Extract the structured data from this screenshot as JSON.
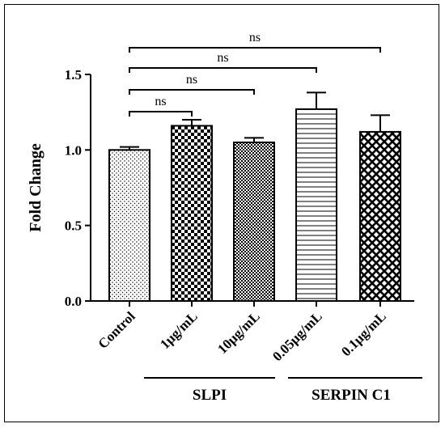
{
  "chart_data": {
    "type": "bar",
    "ylabel": "Fold Change",
    "ylim": [
      0.0,
      1.5
    ],
    "yticks": [
      "0.0",
      "0.5",
      "1.0",
      "1.5"
    ],
    "categories": [
      "Control",
      "1μg/mL",
      "10μg/mL",
      "0.05μg/mL",
      "0.1μg/mL"
    ],
    "values": [
      1.0,
      1.16,
      1.05,
      1.27,
      1.12
    ],
    "errors": [
      0.02,
      0.04,
      0.03,
      0.11,
      0.11
    ],
    "patterns": [
      "dots",
      "checker",
      "fine-checker",
      "horizontal-lines",
      "diagonal-crosshatch"
    ],
    "groups": [
      {
        "label": "SLPI",
        "categories": [
          "1μg/mL",
          "10μg/mL"
        ]
      },
      {
        "label": "SERPIN C1",
        "categories": [
          "0.05μg/mL",
          "0.1μg/mL"
        ]
      }
    ],
    "significance": [
      {
        "from": "Control",
        "to": "1μg/mL",
        "label": "ns"
      },
      {
        "from": "Control",
        "to": "10μg/mL",
        "label": "ns"
      },
      {
        "from": "Control",
        "to": "0.05μg/mL",
        "label": "ns"
      },
      {
        "from": "Control",
        "to": "0.1μg/mL",
        "label": "ns"
      }
    ],
    "colors": {
      "ink": "#000000",
      "background": "#ffffff"
    }
  }
}
